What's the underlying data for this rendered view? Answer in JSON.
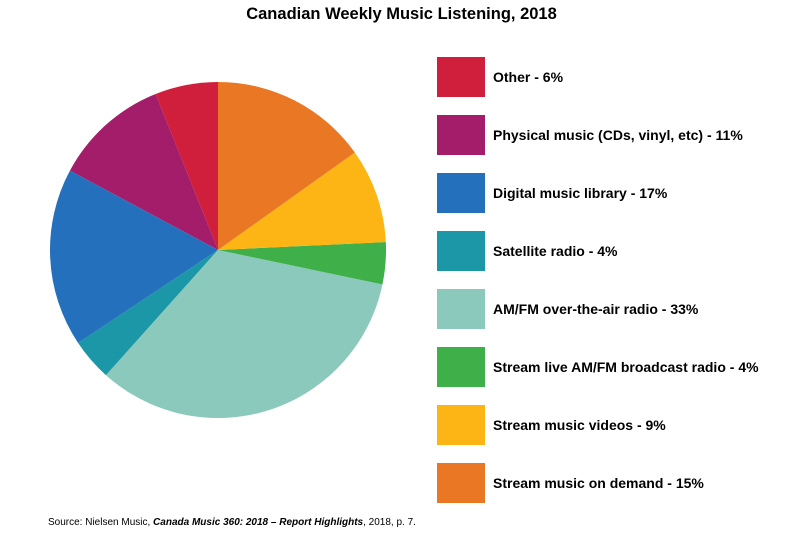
{
  "chart_data": {
    "type": "pie",
    "title": "Canadian Weekly Music Listening, 2018",
    "start_angle_deg": 0,
    "direction": "counterclockwise",
    "slices": [
      {
        "label": "Other",
        "value": 6,
        "color": "#d01f3c",
        "legend": "Other - 6%"
      },
      {
        "label": "Physical music (CDs, vinyl, etc)",
        "value": 11,
        "color": "#a31d6a",
        "legend": "Physical music (CDs, vinyl, etc) - 11%"
      },
      {
        "label": "Digital music library",
        "value": 17,
        "color": "#2470bd",
        "legend": "Digital music library - 17%"
      },
      {
        "label": "Satellite radio",
        "value": 4,
        "color": "#1b97a8",
        "legend": "Satellite radio - 4%"
      },
      {
        "label": "AM/FM over-the-air radio",
        "value": 33,
        "color": "#8bc9bd",
        "legend": "AM/FM over-the-air radio - 33%"
      },
      {
        "label": "Stream live AM/FM broadcast radio",
        "value": 4,
        "color": "#3fb049",
        "legend": "Stream live AM/FM broadcast radio - 4%"
      },
      {
        "label": "Stream music videos",
        "value": 9,
        "color": "#fdb515",
        "legend": "Stream music videos - 9%"
      },
      {
        "label": "Stream music on demand",
        "value": 15,
        "color": "#ea7724",
        "legend": "Stream music on demand - 15%"
      }
    ],
    "legend_position": "right"
  },
  "source": {
    "prefix": "Source: Nielsen Music, ",
    "title": "Canada Music 360: 2018 – Report Highlights",
    "suffix": ", 2018, p. 7."
  }
}
